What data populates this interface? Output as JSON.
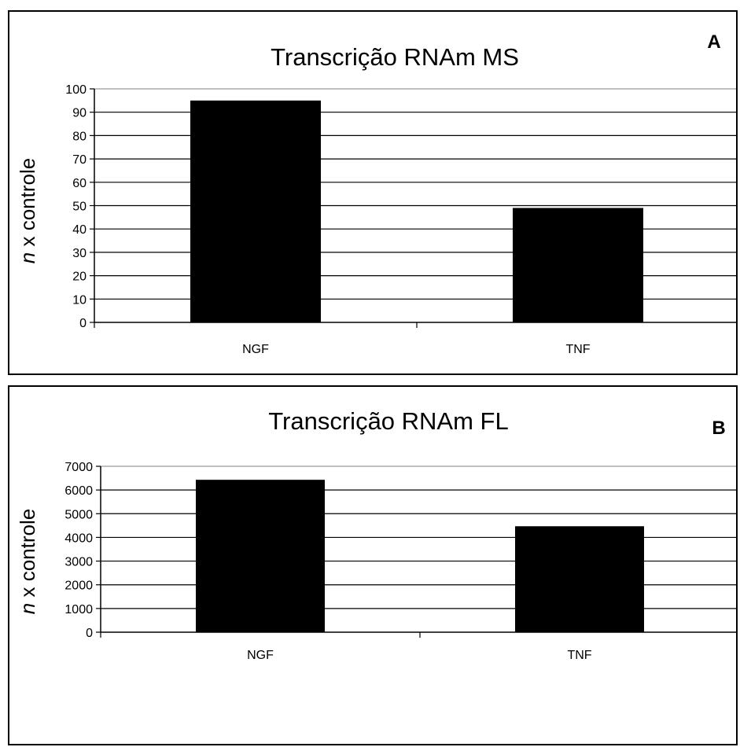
{
  "chart_data": [
    {
      "type": "bar",
      "panel_letter": "A",
      "title": "Transcrição RNAm MS",
      "ylabel_italic": "n",
      "ylabel_rest": " x controle",
      "categories": [
        "NGF",
        "TNF"
      ],
      "values": [
        95,
        49
      ],
      "ylim": [
        0,
        100
      ],
      "yticks": [
        0,
        10,
        20,
        30,
        40,
        50,
        60,
        70,
        80,
        90,
        100
      ],
      "bar_color": "#000000",
      "grid": true,
      "legend": "none"
    },
    {
      "type": "bar",
      "panel_letter": "B",
      "title": "Transcrição RNAm FL",
      "ylabel_italic": "n",
      "ylabel_rest": " x controle",
      "categories": [
        "NGF",
        "TNF"
      ],
      "values": [
        6430,
        4470
      ],
      "ylim": [
        0,
        7000
      ],
      "yticks": [
        0,
        1000,
        2000,
        3000,
        4000,
        5000,
        6000,
        7000
      ],
      "bar_color": "#000000",
      "grid": true,
      "legend": "none"
    }
  ]
}
